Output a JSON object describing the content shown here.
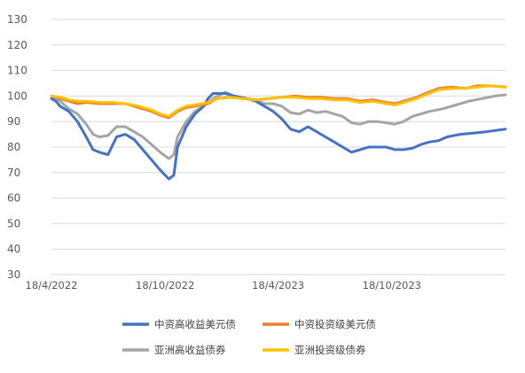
{
  "chart_data": {
    "type": "line",
    "ylim": [
      30,
      130
    ],
    "yticks": [
      30,
      40,
      50,
      60,
      70,
      80,
      90,
      100,
      110,
      120,
      130
    ],
    "x_range": [
      "2022-04-18",
      "2024-04-18"
    ],
    "xtick_labels": [
      "18/4/2022",
      "18/10/2022",
      "18/4/2023",
      "18/10/2023"
    ],
    "xtick_dates": [
      "2022-04-18",
      "2022-10-18",
      "2023-04-18",
      "2023-10-18"
    ],
    "grid": true,
    "legend_position": "bottom",
    "series": [
      {
        "name": "中资高收益美元债",
        "color": "#4472c4",
        "points": [
          [
            "2022-04-18",
            99
          ],
          [
            "2022-04-25",
            98
          ],
          [
            "2022-05-02",
            96
          ],
          [
            "2022-05-16",
            94
          ],
          [
            "2022-05-30",
            90
          ],
          [
            "2022-06-13",
            84
          ],
          [
            "2022-06-24",
            79
          ],
          [
            "2022-07-04",
            78
          ],
          [
            "2022-07-18",
            77
          ],
          [
            "2022-08-01",
            84
          ],
          [
            "2022-08-15",
            85
          ],
          [
            "2022-08-29",
            83
          ],
          [
            "2022-09-12",
            79
          ],
          [
            "2022-09-26",
            75
          ],
          [
            "2022-10-10",
            71
          ],
          [
            "2022-10-24",
            67.5
          ],
          [
            "2022-11-01",
            69
          ],
          [
            "2022-11-07",
            80
          ],
          [
            "2022-11-21",
            88
          ],
          [
            "2022-12-05",
            93
          ],
          [
            "2022-12-19",
            96
          ],
          [
            "2022-12-26",
            99
          ],
          [
            "2023-01-03",
            101
          ],
          [
            "2023-01-23",
            101
          ],
          [
            "2023-02-06",
            100
          ],
          [
            "2023-02-27",
            99
          ],
          [
            "2023-03-13",
            98
          ],
          [
            "2023-03-27",
            96
          ],
          [
            "2023-04-10",
            94
          ],
          [
            "2023-04-24",
            91
          ],
          [
            "2023-05-08",
            87
          ],
          [
            "2023-05-22",
            86
          ],
          [
            "2023-06-05",
            88
          ],
          [
            "2023-06-19",
            86
          ],
          [
            "2023-07-03",
            84
          ],
          [
            "2023-07-17",
            82
          ],
          [
            "2023-07-31",
            80
          ],
          [
            "2023-08-14",
            78
          ],
          [
            "2023-08-28",
            79
          ],
          [
            "2023-09-11",
            80
          ],
          [
            "2023-09-25",
            80
          ],
          [
            "2023-10-09",
            80
          ],
          [
            "2023-10-23",
            79
          ],
          [
            "2023-11-06",
            79
          ],
          [
            "2023-11-20",
            79.5
          ],
          [
            "2023-12-04",
            81
          ],
          [
            "2023-12-18",
            82
          ],
          [
            "2024-01-01",
            82.5
          ],
          [
            "2024-01-15",
            84
          ],
          [
            "2024-02-05",
            85
          ],
          [
            "2024-02-26",
            85.5
          ],
          [
            "2024-03-18",
            86
          ],
          [
            "2024-04-01",
            86.5
          ],
          [
            "2024-04-18",
            87
          ]
        ]
      },
      {
        "name": "中资投资级美元债",
        "color": "#ed7d31",
        "points": [
          [
            "2022-04-18",
            100
          ],
          [
            "2022-05-02",
            99
          ],
          [
            "2022-05-16",
            98
          ],
          [
            "2022-05-30",
            97
          ],
          [
            "2022-06-13",
            97.5
          ],
          [
            "2022-07-04",
            97
          ],
          [
            "2022-07-25",
            97
          ],
          [
            "2022-08-15",
            97
          ],
          [
            "2022-09-05",
            95.5
          ],
          [
            "2022-09-26",
            94
          ],
          [
            "2022-10-10",
            92.5
          ],
          [
            "2022-10-24",
            91.5
          ],
          [
            "2022-11-07",
            94
          ],
          [
            "2022-11-21",
            95.5
          ],
          [
            "2022-12-05",
            96
          ],
          [
            "2022-12-26",
            97
          ],
          [
            "2023-01-09",
            99
          ],
          [
            "2023-01-30",
            99.5
          ],
          [
            "2023-02-20",
            99
          ],
          [
            "2023-03-13",
            98.5
          ],
          [
            "2023-04-03",
            99
          ],
          [
            "2023-04-24",
            99.5
          ],
          [
            "2023-05-15",
            100
          ],
          [
            "2023-06-05",
            99.5
          ],
          [
            "2023-06-26",
            99.5
          ],
          [
            "2023-07-17",
            99
          ],
          [
            "2023-08-07",
            99
          ],
          [
            "2023-08-28",
            98
          ],
          [
            "2023-09-18",
            98.5
          ],
          [
            "2023-10-09",
            97.5
          ],
          [
            "2023-10-23",
            97
          ],
          [
            "2023-11-06",
            98
          ],
          [
            "2023-11-27",
            99.5
          ],
          [
            "2023-12-11",
            101
          ],
          [
            "2024-01-01",
            103
          ],
          [
            "2024-01-22",
            103.5
          ],
          [
            "2024-02-12",
            103
          ],
          [
            "2024-03-04",
            104
          ],
          [
            "2024-03-25",
            104
          ],
          [
            "2024-04-18",
            103.5
          ]
        ]
      },
      {
        "name": "亚洲高收益债券",
        "color": "#a5a5a5",
        "points": [
          [
            "2022-04-18",
            100
          ],
          [
            "2022-05-02",
            98
          ],
          [
            "2022-05-16",
            95
          ],
          [
            "2022-05-30",
            93
          ],
          [
            "2022-06-13",
            89
          ],
          [
            "2022-06-24",
            85
          ],
          [
            "2022-07-04",
            84
          ],
          [
            "2022-07-18",
            84.5
          ],
          [
            "2022-08-01",
            88
          ],
          [
            "2022-08-15",
            88
          ],
          [
            "2022-08-29",
            86
          ],
          [
            "2022-09-12",
            84
          ],
          [
            "2022-09-26",
            81
          ],
          [
            "2022-10-10",
            78
          ],
          [
            "2022-10-24",
            75.5
          ],
          [
            "2022-11-01",
            77
          ],
          [
            "2022-11-07",
            84
          ],
          [
            "2022-11-21",
            90
          ],
          [
            "2022-12-05",
            94
          ],
          [
            "2022-12-19",
            96
          ],
          [
            "2023-01-03",
            99
          ],
          [
            "2023-01-23",
            101.5
          ],
          [
            "2023-02-06",
            100
          ],
          [
            "2023-02-27",
            99
          ],
          [
            "2023-03-13",
            98.5
          ],
          [
            "2023-03-27",
            97
          ],
          [
            "2023-04-10",
            97
          ],
          [
            "2023-04-24",
            96
          ],
          [
            "2023-05-08",
            93.5
          ],
          [
            "2023-05-22",
            93
          ],
          [
            "2023-06-05",
            94.5
          ],
          [
            "2023-06-19",
            93.5
          ],
          [
            "2023-07-03",
            94
          ],
          [
            "2023-07-17",
            93
          ],
          [
            "2023-07-31",
            92
          ],
          [
            "2023-08-14",
            89.5
          ],
          [
            "2023-08-28",
            89
          ],
          [
            "2023-09-11",
            90
          ],
          [
            "2023-09-25",
            90
          ],
          [
            "2023-10-09",
            89.5
          ],
          [
            "2023-10-23",
            89
          ],
          [
            "2023-11-06",
            90
          ],
          [
            "2023-11-20",
            92
          ],
          [
            "2023-12-04",
            93
          ],
          [
            "2023-12-18",
            94
          ],
          [
            "2024-01-08",
            95
          ],
          [
            "2024-01-29",
            96.5
          ],
          [
            "2024-02-19",
            98
          ],
          [
            "2024-03-11",
            99
          ],
          [
            "2024-04-01",
            100
          ],
          [
            "2024-04-18",
            100.5
          ]
        ]
      },
      {
        "name": "亚洲投资级债券",
        "color": "#ffc000",
        "points": [
          [
            "2022-04-18",
            100
          ],
          [
            "2022-05-02",
            99.5
          ],
          [
            "2022-05-16",
            98.5
          ],
          [
            "2022-05-30",
            98
          ],
          [
            "2022-06-13",
            98
          ],
          [
            "2022-07-04",
            97.5
          ],
          [
            "2022-07-25",
            97.5
          ],
          [
            "2022-08-15",
            97
          ],
          [
            "2022-09-05",
            96
          ],
          [
            "2022-09-26",
            94.5
          ],
          [
            "2022-10-10",
            93
          ],
          [
            "2022-10-24",
            92
          ],
          [
            "2022-11-07",
            94.5
          ],
          [
            "2022-11-21",
            96
          ],
          [
            "2022-12-05",
            96.5
          ],
          [
            "2022-12-26",
            97.5
          ],
          [
            "2023-01-09",
            99
          ],
          [
            "2023-01-30",
            99.5
          ],
          [
            "2023-02-20",
            99
          ],
          [
            "2023-03-13",
            98.5
          ],
          [
            "2023-04-03",
            99
          ],
          [
            "2023-04-24",
            99.5
          ],
          [
            "2023-05-15",
            99.5
          ],
          [
            "2023-06-05",
            99
          ],
          [
            "2023-06-26",
            99
          ],
          [
            "2023-07-17",
            98.5
          ],
          [
            "2023-08-07",
            98.5
          ],
          [
            "2023-08-28",
            97.5
          ],
          [
            "2023-09-18",
            98
          ],
          [
            "2023-10-09",
            97
          ],
          [
            "2023-10-23",
            96.5
          ],
          [
            "2023-11-06",
            97.5
          ],
          [
            "2023-11-27",
            99
          ],
          [
            "2023-12-11",
            100.5
          ],
          [
            "2024-01-01",
            102.5
          ],
          [
            "2024-01-22",
            103
          ],
          [
            "2024-02-12",
            103
          ],
          [
            "2024-03-04",
            103.5
          ],
          [
            "2024-03-25",
            104
          ],
          [
            "2024-04-18",
            103.5
          ]
        ]
      }
    ]
  }
}
